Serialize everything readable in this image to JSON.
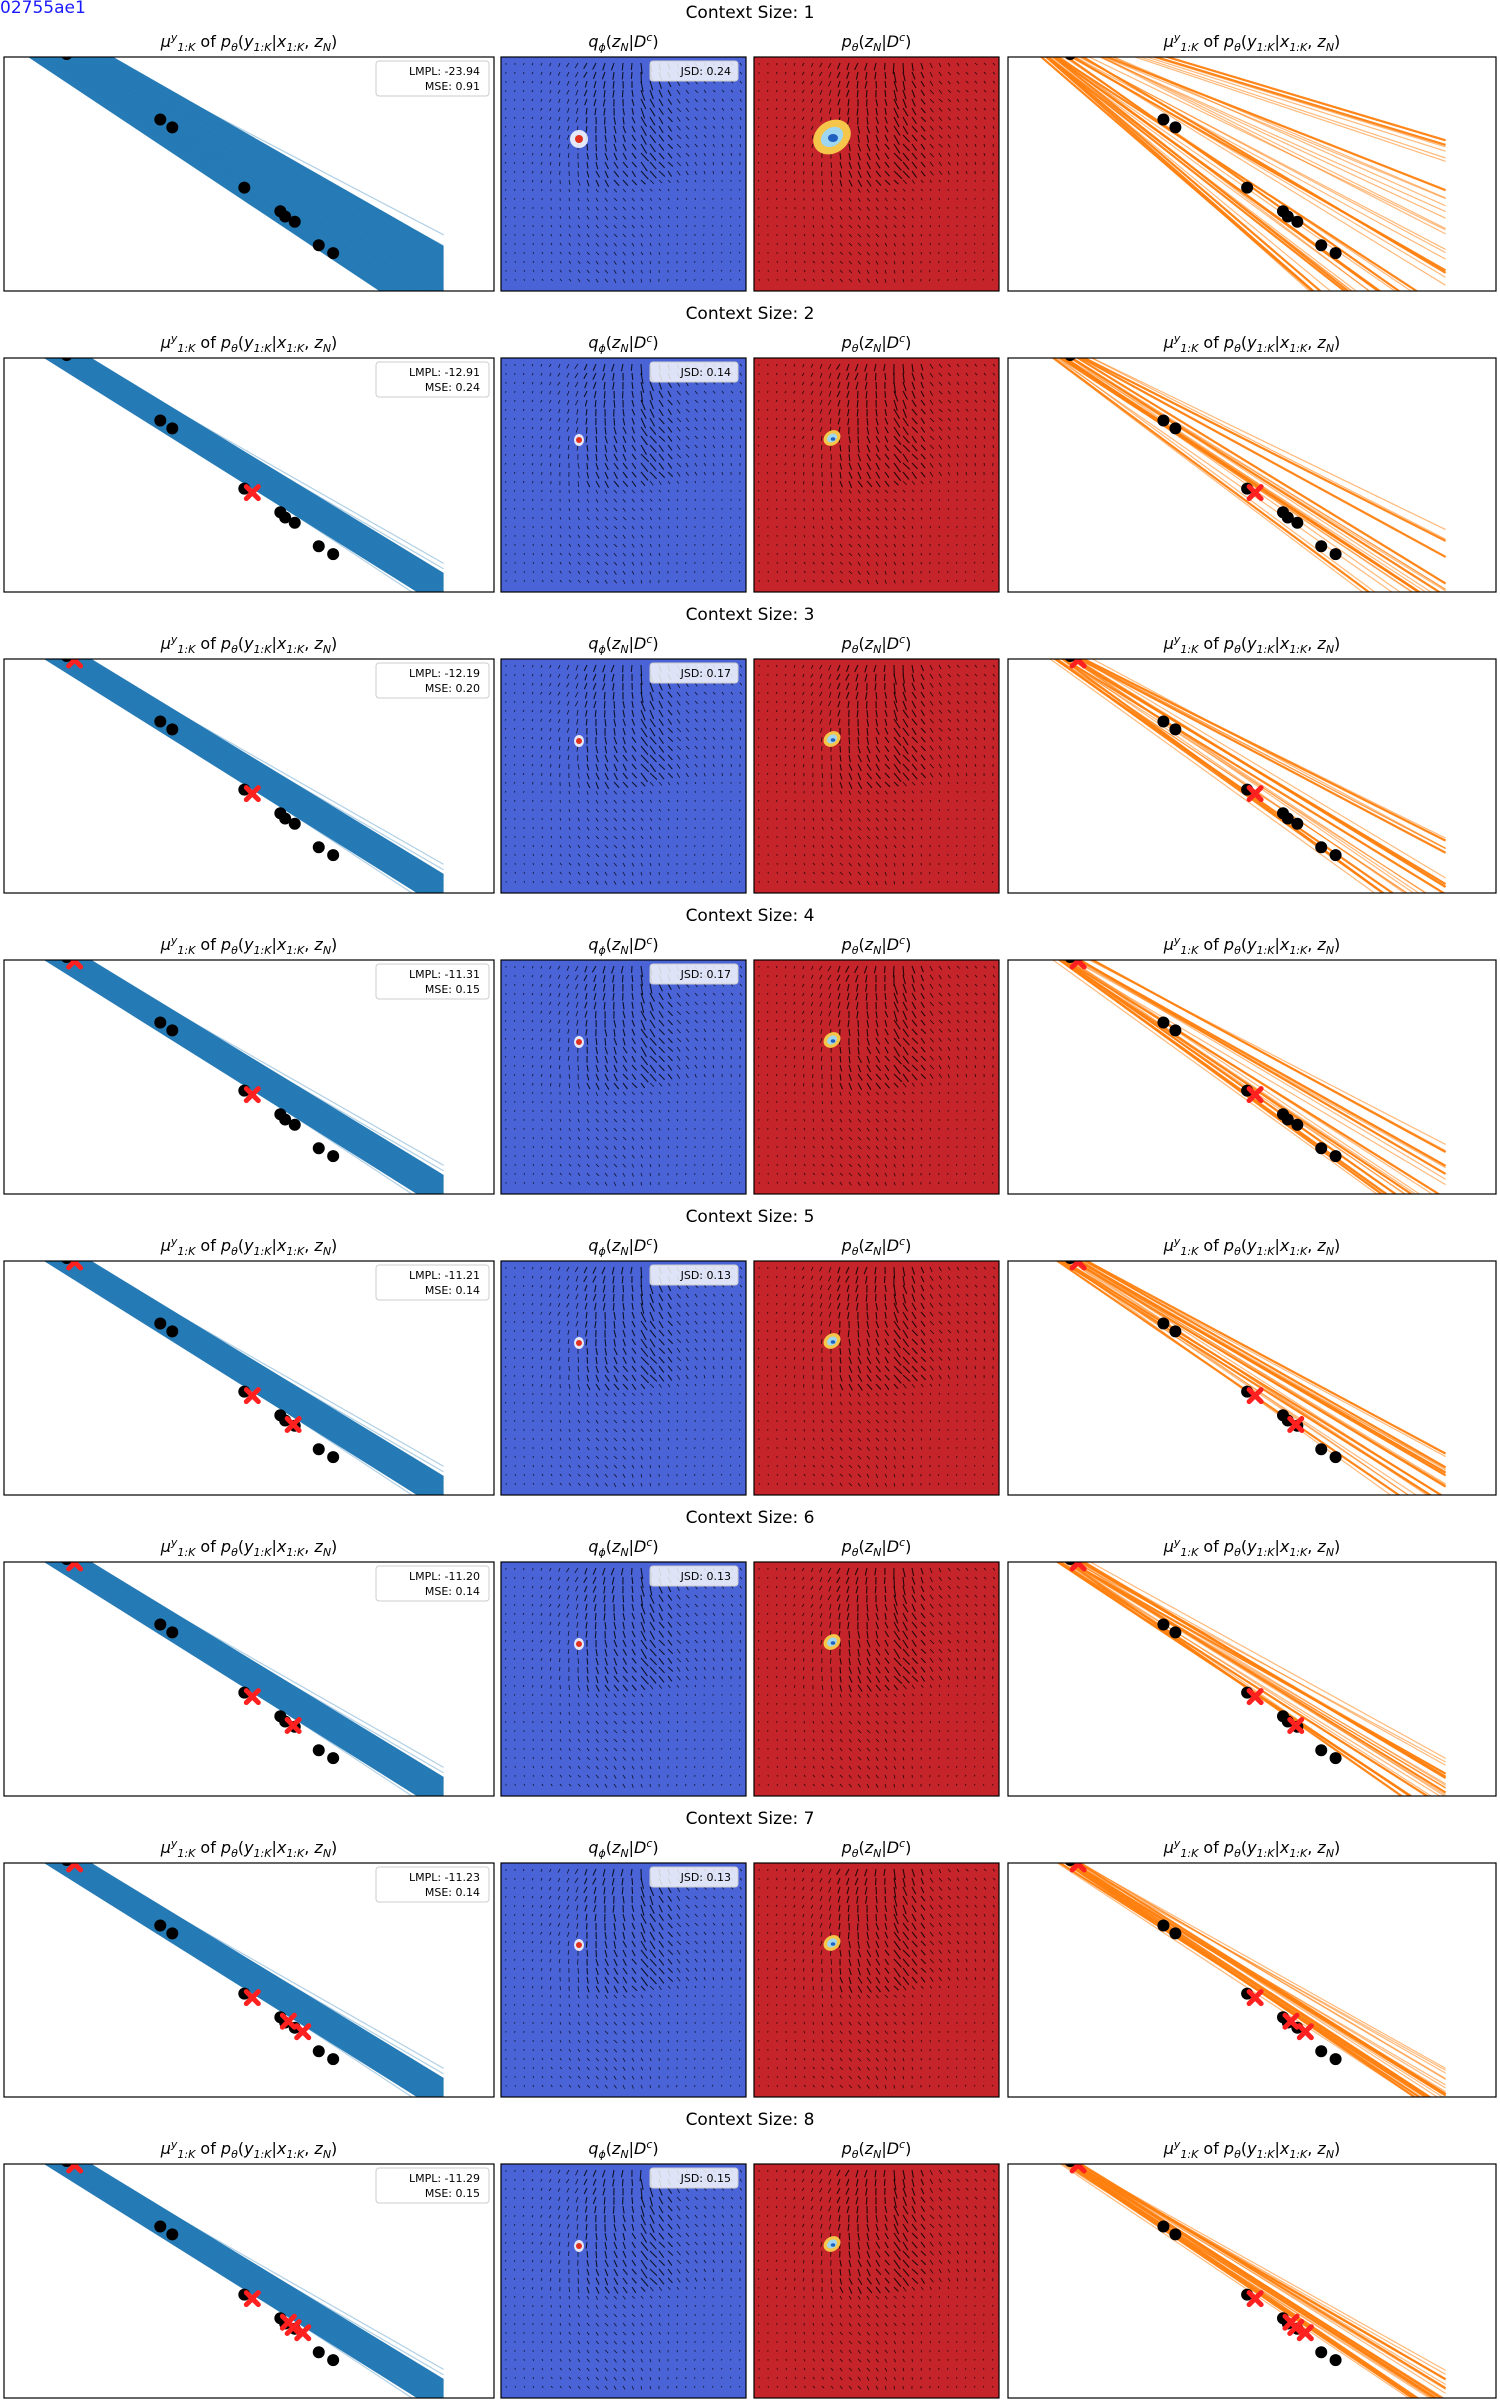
{
  "figure_id": "02755ae1",
  "row_title_prefix": "Context Size: ",
  "titles": {
    "mean_plot": "μ^y_{1:K} of p_θ(y_{1:K}|x_{1:K}, z_N)",
    "posterior": "q_φ(z_N|D^c)",
    "prior": "p_θ(z_N|D^c)"
  },
  "legend_labels": {
    "lmpl": "LMPL",
    "mse": "MSE",
    "jsd": "JSD"
  },
  "colors": {
    "mean_band": "#1f77b4",
    "sample_lines": "#ff7f0e",
    "posterior_bg": "#4a64d8",
    "prior_bg": "#c4242a",
    "target_points": "#000000",
    "context_points": "#ff2020",
    "quiver": "#000000"
  },
  "chart_data": {
    "type": "line",
    "description_note": "",
    "target_points": {
      "x": [
        0.18,
        0.235,
        0.245,
        0.44,
        0.465,
        0.615,
        0.69,
        0.7,
        0.72,
        0.77,
        0.8
      ],
      "y": [
        0.99,
        0.93,
        0.92,
        0.67,
        0.64,
        0.41,
        0.32,
        0.3,
        0.28,
        0.19,
        0.16
      ]
    },
    "rows": [
      {
        "context_size": 1,
        "lmpl": "-23.94",
        "mse": "0.91",
        "jsd": "0.24",
        "context_points": {
          "x": [],
          "y": []
        }
      },
      {
        "context_size": 2,
        "lmpl": "-12.91",
        "mse": "0.24",
        "jsd": "0.14",
        "context_points": {
          "x": [
            0.615
          ],
          "y": [
            0.41
          ]
        }
      },
      {
        "context_size": 3,
        "lmpl": "-12.19",
        "mse": "0.20",
        "jsd": "0.17",
        "context_points": {
          "x": [
            0.245,
            0.615
          ],
          "y": [
            0.92,
            0.41
          ]
        }
      },
      {
        "context_size": 4,
        "lmpl": "-11.31",
        "mse": "0.15",
        "jsd": "0.17",
        "context_points": {
          "x": [
            0.245,
            0.615
          ],
          "y": [
            0.92,
            0.41
          ]
        }
      },
      {
        "context_size": 5,
        "lmpl": "-11.21",
        "mse": "0.14",
        "jsd": "0.13",
        "context_points": {
          "x": [
            0.245,
            0.615,
            0.7
          ],
          "y": [
            0.92,
            0.41,
            0.3
          ]
        }
      },
      {
        "context_size": 6,
        "lmpl": "-11.20",
        "mse": "0.14",
        "jsd": "0.13",
        "context_points": {
          "x": [
            0.18,
            0.245,
            0.615,
            0.7
          ],
          "y": [
            0.99,
            0.92,
            0.41,
            0.3
          ]
        }
      },
      {
        "context_size": 7,
        "lmpl": "-11.23",
        "mse": "0.14",
        "jsd": "0.13",
        "context_points": {
          "x": [
            0.18,
            0.245,
            0.615,
            0.69,
            0.72
          ],
          "y": [
            0.99,
            0.92,
            0.41,
            0.32,
            0.28
          ]
        }
      },
      {
        "context_size": 8,
        "lmpl": "-11.29",
        "mse": "0.15",
        "jsd": "0.15",
        "context_points": {
          "x": [
            0.18,
            0.245,
            0.615,
            0.69,
            0.7,
            0.72
          ],
          "y": [
            0.99,
            0.92,
            0.41,
            0.32,
            0.3,
            0.28
          ]
        }
      }
    ]
  }
}
